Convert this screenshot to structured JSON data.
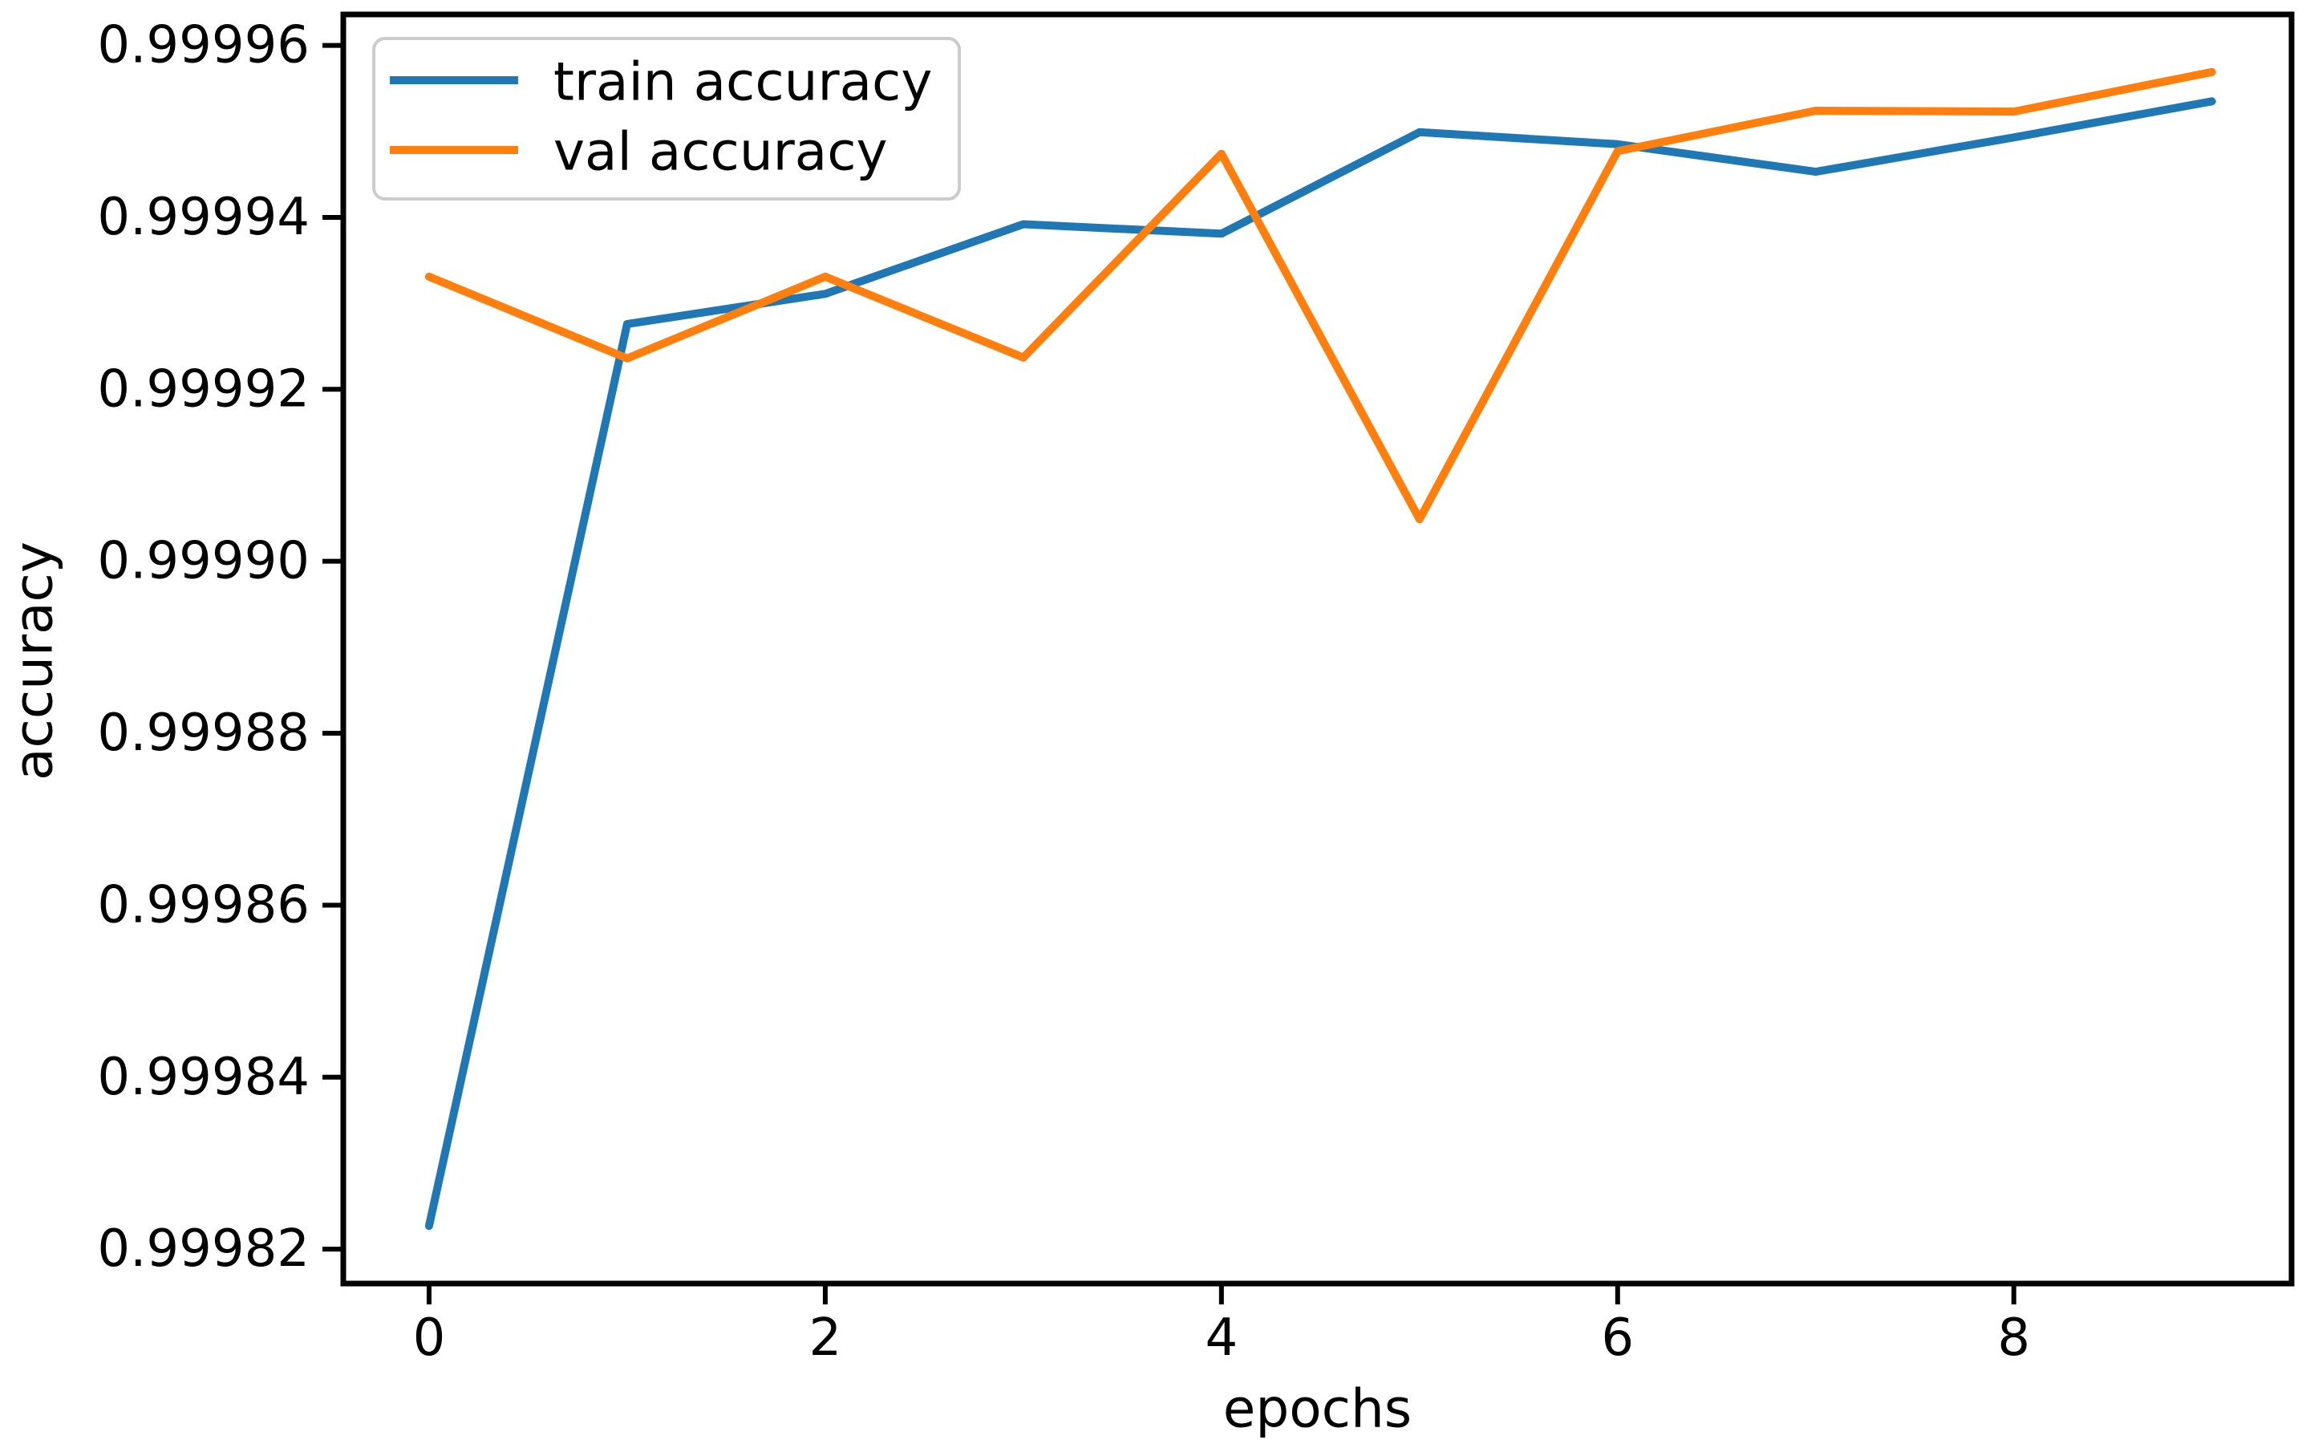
{
  "chart_data": {
    "type": "line",
    "x": [
      0,
      1,
      2,
      3,
      4,
      5,
      6,
      7,
      8,
      9
    ],
    "series": [
      {
        "name": "train accuracy",
        "color": "#1f77b4",
        "values": [
          0.9998227,
          0.9999276,
          0.9999311,
          0.9999392,
          0.9999381,
          0.9999499,
          0.9999485,
          0.9999453,
          0.9999493,
          0.9999535
        ]
      },
      {
        "name": "val accuracy",
        "color": "#ff7f0e",
        "values": [
          0.9999331,
          0.9999236,
          0.9999331,
          0.9999237,
          0.9999474,
          0.9999049,
          0.9999477,
          0.9999524,
          0.9999523,
          0.9999569
        ]
      }
    ],
    "title": "",
    "xlabel": "epochs",
    "ylabel": "accuracy",
    "x_tick_values": [
      0,
      2,
      4,
      6,
      8
    ],
    "x_tick_labels": [
      "0",
      "2",
      "4",
      "6",
      "8"
    ],
    "y_tick_values": [
      0.99996,
      0.99994,
      0.99992,
      0.9999,
      0.99988,
      0.99986,
      0.99984,
      0.99982
    ],
    "y_tick_labels": [
      "0.99996",
      "0.99994",
      "0.99992",
      "0.99990",
      "0.99988",
      "0.99986",
      "0.99984",
      "0.99982"
    ],
    "xlim": [
      -0.433,
      9.402
    ],
    "ylim": [
      0.999816,
      0.9999636
    ],
    "grid": false,
    "legend": {
      "position": "upper left",
      "entries": [
        "train accuracy",
        "val accuracy"
      ]
    }
  },
  "style_colors": {
    "axis": "#000000",
    "text": "#000000",
    "legend_border": "#cccccc",
    "background": "#ffffff"
  }
}
